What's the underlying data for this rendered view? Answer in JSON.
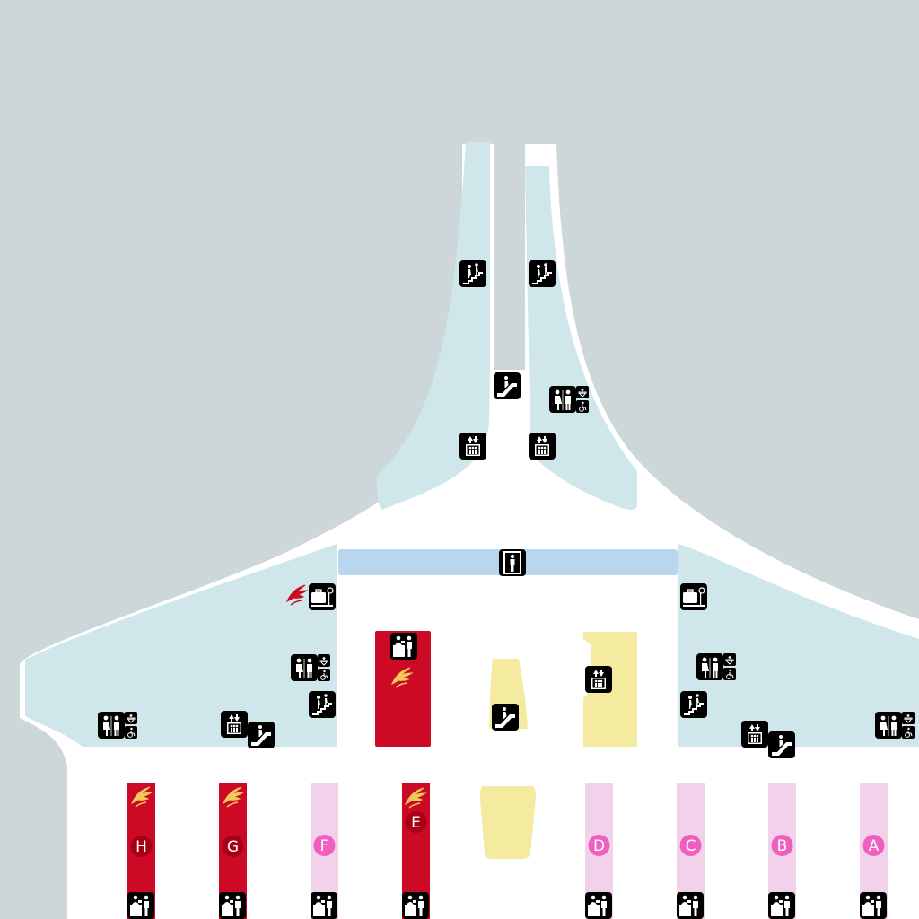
{
  "colors": {
    "background": "#cdd6d9",
    "floor": "#ffffff",
    "gate_area": "#cfe6ea",
    "security_band": "#b8d6ee",
    "shenzhen_airlines_red": "#cc0a25",
    "commercial_yellow": "#f4eaa0",
    "other_counter_pink": "#f2d2ea",
    "letter_badge_pink": "#ef5fbf",
    "letter_badge_red": "#a80014",
    "icon_black": "#000000"
  },
  "counters": [
    {
      "letter": "H",
      "airline": "shenzhen-airlines",
      "style": "red"
    },
    {
      "letter": "G",
      "airline": "shenzhen-airlines",
      "style": "red"
    },
    {
      "letter": "F",
      "airline": "",
      "style": "pink"
    },
    {
      "letter": "E",
      "airline": "shenzhen-airlines",
      "style": "red"
    },
    {
      "letter": "D",
      "airline": "",
      "style": "pink"
    },
    {
      "letter": "C",
      "airline": "",
      "style": "pink"
    },
    {
      "letter": "B",
      "airline": "",
      "style": "pink"
    },
    {
      "letter": "A",
      "airline": "",
      "style": "pink"
    }
  ],
  "icons": {
    "stairs": "stairs-icon",
    "escalator": "escalator-icon",
    "elevator": "elevator-icon",
    "restroom": "restroom-icon",
    "security": "security-check-icon",
    "baggage": "baggage-service-icon",
    "checkin": "check-in-icon",
    "airline_logo": "shenzhen-airlines-logo"
  }
}
